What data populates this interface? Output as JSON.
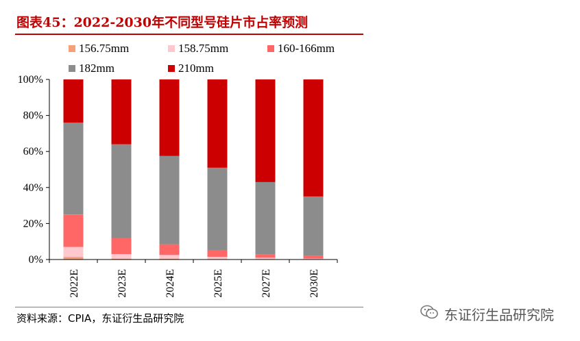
{
  "title": "图表45：2022-2030年不同型号硅片市占率预测",
  "source": "资料来源：CPIA，东证衍生品研究院",
  "watermark": "东证衍生品研究院",
  "watermark_icon": "wechat-icon",
  "chart_data": {
    "type": "bar",
    "stacked": true,
    "categories": [
      "2022E",
      "2023E",
      "2024E",
      "2025E",
      "2027E",
      "2030E"
    ],
    "series": [
      {
        "name": "156.75mm",
        "color": "#f4a078",
        "values": [
          1.5,
          0.5,
          0.5,
          0.3,
          0.2,
          0.0
        ]
      },
      {
        "name": "158.75mm",
        "color": "#ffc7ce",
        "values": [
          5.5,
          2.5,
          2.0,
          1.2,
          0.8,
          0.5
        ]
      },
      {
        "name": "160-166mm",
        "color": "#ff6666",
        "values": [
          18.0,
          9.0,
          6.0,
          3.5,
          2.0,
          1.5
        ]
      },
      {
        "name": "182mm",
        "color": "#8c8c8c",
        "values": [
          51.0,
          52.0,
          49.0,
          46.0,
          40.0,
          33.0
        ]
      },
      {
        "name": "210mm",
        "color": "#cc0000",
        "values": [
          24.0,
          36.0,
          42.5,
          49.0,
          57.0,
          65.0
        ]
      }
    ],
    "ylim": [
      0,
      100
    ],
    "yticks": [
      "0%",
      "20%",
      "40%",
      "60%",
      "80%",
      "100%"
    ],
    "ytick_values": [
      0,
      20,
      40,
      60,
      80,
      100
    ],
    "grid": false,
    "legend_position": "top"
  }
}
